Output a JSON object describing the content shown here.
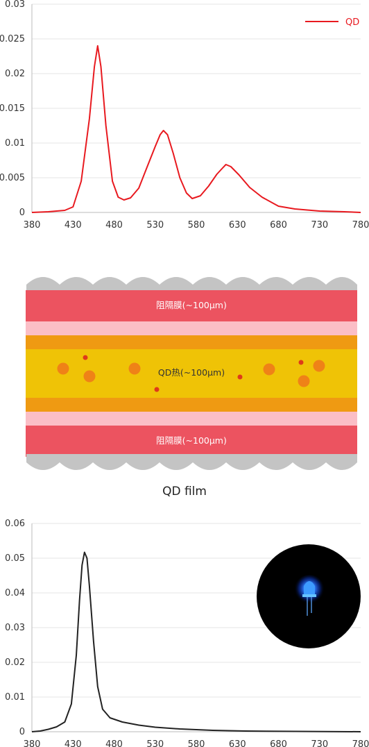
{
  "chart_data": [
    {
      "type": "line",
      "title": "",
      "xlabel": "",
      "ylabel": "",
      "xlim": [
        380,
        780
      ],
      "ylim": [
        0,
        0.03
      ],
      "x_ticks": [
        "380",
        "430",
        "480",
        "530",
        "580",
        "630",
        "680",
        "730",
        "780"
      ],
      "y_ticks": [
        "0",
        "0.005",
        "0.01",
        "0.015",
        "0.02",
        "0.025",
        "0.03"
      ],
      "grid": "horizontal",
      "legend": "top-right",
      "series": [
        {
          "name": "QD",
          "color": "#e8191f",
          "points": [
            [
              380,
              0
            ],
            [
              400,
              0.0001
            ],
            [
              420,
              0.0003
            ],
            [
              430,
              0.0008
            ],
            [
              440,
              0.0045
            ],
            [
              450,
              0.0135
            ],
            [
              456,
              0.021
            ],
            [
              460,
              0.024
            ],
            [
              464,
              0.021
            ],
            [
              470,
              0.0125
            ],
            [
              478,
              0.0045
            ],
            [
              485,
              0.0022
            ],
            [
              492,
              0.0018
            ],
            [
              500,
              0.0021
            ],
            [
              510,
              0.0035
            ],
            [
              520,
              0.0065
            ],
            [
              530,
              0.0095
            ],
            [
              536,
              0.0112
            ],
            [
              540,
              0.0118
            ],
            [
              545,
              0.0112
            ],
            [
              552,
              0.0085
            ],
            [
              560,
              0.005
            ],
            [
              568,
              0.0028
            ],
            [
              575,
              0.002
            ],
            [
              585,
              0.0024
            ],
            [
              595,
              0.0038
            ],
            [
              605,
              0.0055
            ],
            [
              612,
              0.0064
            ],
            [
              616,
              0.0069
            ],
            [
              622,
              0.0066
            ],
            [
              632,
              0.0054
            ],
            [
              645,
              0.0036
            ],
            [
              660,
              0.0022
            ],
            [
              680,
              0.0009
            ],
            [
              700,
              0.0005
            ],
            [
              730,
              0.0002
            ],
            [
              760,
              0.0001
            ],
            [
              780,
              0
            ]
          ]
        }
      ]
    },
    {
      "type": "line",
      "title": "",
      "xlabel": "",
      "ylabel": "",
      "xlim": [
        380,
        780
      ],
      "ylim": [
        0,
        0.06
      ],
      "x_ticks": [
        "380",
        "430",
        "480",
        "530",
        "580",
        "630",
        "680",
        "730",
        "780"
      ],
      "y_ticks": [
        "0",
        "0.01",
        "0.02",
        "0.03",
        "0.04",
        "0.05",
        "0.06"
      ],
      "grid": "horizontal",
      "legend": "none",
      "series": [
        {
          "color": "#222222",
          "points": [
            [
              380,
              0
            ],
            [
              390,
              0.0002
            ],
            [
              400,
              0.0007
            ],
            [
              410,
              0.0014
            ],
            [
              420,
              0.0028
            ],
            [
              428,
              0.008
            ],
            [
              434,
              0.022
            ],
            [
              438,
              0.038
            ],
            [
              441,
              0.048
            ],
            [
              444,
              0.0517
            ],
            [
              447,
              0.05
            ],
            [
              450,
              0.042
            ],
            [
              455,
              0.026
            ],
            [
              460,
              0.013
            ],
            [
              466,
              0.0065
            ],
            [
              475,
              0.004
            ],
            [
              490,
              0.0028
            ],
            [
              510,
              0.0019
            ],
            [
              530,
              0.0013
            ],
            [
              560,
              0.0008
            ],
            [
              600,
              0.0004
            ],
            [
              640,
              0.0002
            ],
            [
              700,
              0.0001
            ],
            [
              780,
              0
            ]
          ]
        }
      ]
    }
  ],
  "film": {
    "caption": "QD film",
    "top_barrier": "阻隔膜(~100μm)",
    "middle_layer": "QD热(~100μm)",
    "bottom_barrier": "阻隔膜(~100μm)",
    "colors": {
      "barrier": "#ec5360",
      "pink": "#fbbec6",
      "orange": "#ef9a12",
      "yellow": "#efc306",
      "dot": "#ef8217",
      "small_dot": "#de3a1a",
      "wave": "#c4c4c4"
    }
  }
}
